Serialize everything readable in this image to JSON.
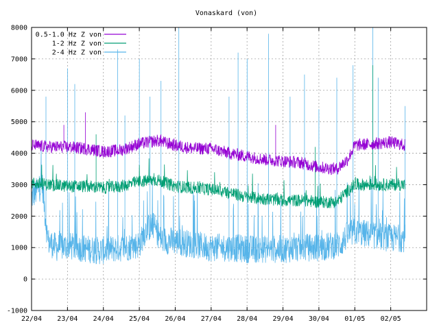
{
  "chart_data": {
    "type": "line",
    "title": "Vonaskard (von)",
    "xlabel": "",
    "ylabel": "",
    "ylim": [
      -1000,
      8000
    ],
    "yticks": [
      -1000,
      0,
      1000,
      2000,
      3000,
      4000,
      5000,
      6000,
      7000,
      8000
    ],
    "xlim": [
      0,
      11
    ],
    "xtick_labels": [
      "22/04",
      "23/04",
      "24/04",
      "25/04",
      "26/04",
      "27/04",
      "28/04",
      "29/04",
      "30/04",
      "01/05",
      "02/05"
    ],
    "grid": true,
    "legend_position": "top-left",
    "series": [
      {
        "name": "0.5-1.0 Hz Z von",
        "color": "#9400d3",
        "x": [
          0,
          0.5,
          1,
          1.5,
          2,
          2.5,
          3,
          3.5,
          4,
          4.5,
          5,
          5.5,
          6,
          6.5,
          7,
          7.5,
          8,
          8.5,
          8.8,
          9,
          9.5,
          10,
          10.4
        ],
        "y": [
          4250,
          4200,
          4200,
          4150,
          4050,
          4100,
          4300,
          4400,
          4250,
          4150,
          4150,
          4000,
          3900,
          3800,
          3750,
          3700,
          3550,
          3500,
          3800,
          4250,
          4300,
          4350,
          4250
        ],
        "noise": 200,
        "spikes": [
          [
            0.9,
            4900
          ],
          [
            1.5,
            5300
          ],
          [
            6.8,
            4900
          ],
          [
            3.6,
            4600
          ]
        ]
      },
      {
        "name": "1-2 Hz Z von",
        "color": "#009e73",
        "x": [
          0,
          0.5,
          1,
          1.5,
          2,
          2.5,
          3,
          3.5,
          4,
          4.5,
          5,
          5.5,
          6,
          6.5,
          7,
          7.5,
          8,
          8.5,
          8.8,
          9,
          9.5,
          10,
          10.4
        ],
        "y": [
          3050,
          3000,
          2950,
          2950,
          2900,
          2950,
          3100,
          3150,
          2950,
          2900,
          2850,
          2750,
          2600,
          2550,
          2500,
          2500,
          2450,
          2450,
          2800,
          3000,
          3000,
          3000,
          3000
        ],
        "noise": 200,
        "spikes": [
          [
            9.5,
            6800
          ],
          [
            1.8,
            4600
          ],
          [
            7.9,
            4200
          ]
        ]
      },
      {
        "name": "2-4 Hz Z von",
        "color": "#56b4e9",
        "x": [
          0,
          0.3,
          0.45,
          0.7,
          1,
          1.3,
          1.6,
          1.9,
          2.2,
          2.6,
          3,
          3.2,
          3.4,
          3.6,
          4,
          4.5,
          5,
          5.5,
          6,
          6.5,
          7,
          7.5,
          8,
          8.3,
          8.6,
          8.8,
          9,
          9.5,
          10,
          10.4
        ],
        "y": [
          2600,
          3000,
          1200,
          1000,
          1050,
          1000,
          950,
          900,
          950,
          1000,
          1100,
          1600,
          1700,
          1250,
          1200,
          1100,
          1000,
          1000,
          950,
          950,
          950,
          1000,
          1000,
          1050,
          1100,
          1400,
          1500,
          1400,
          1300,
          1300
        ],
        "noise": 450,
        "spikes": [
          [
            0.4,
            5800
          ],
          [
            1.0,
            6700
          ],
          [
            1.2,
            6200
          ],
          [
            2.4,
            7300
          ],
          [
            2.6,
            5200
          ],
          [
            3.0,
            7000
          ],
          [
            3.3,
            5800
          ],
          [
            3.6,
            6300
          ],
          [
            4.1,
            8000
          ],
          [
            5.5,
            5800
          ],
          [
            5.75,
            7200
          ],
          [
            6.0,
            7000
          ],
          [
            6.6,
            7800
          ],
          [
            7.2,
            5800
          ],
          [
            7.6,
            6500
          ],
          [
            8.0,
            5400
          ],
          [
            8.5,
            6400
          ],
          [
            8.95,
            6800
          ],
          [
            9.5,
            8000
          ],
          [
            9.65,
            6400
          ],
          [
            10.4,
            5500
          ]
        ]
      }
    ]
  }
}
